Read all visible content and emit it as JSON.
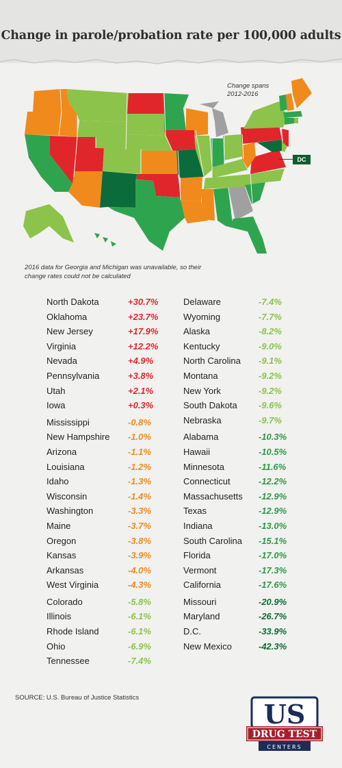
{
  "title": "Change in parole/probation rate per 100,000 adults",
  "change_spans_note": "Change spans\n2012-2016",
  "dc_label": "DC",
  "map_note_line1": "2016 data for Georgia and Michigan was unavailable, so their",
  "map_note_line2": "change rates could not be calculated",
  "source": "SOURCE: U.S. Bureau of Justice Statistics",
  "logo": {
    "top": "US",
    "middle": "DRUG TEST",
    "bottom": "CENTERS"
  },
  "colors": {
    "increase": "#e0262b",
    "small_decrease": "#f08a1c",
    "moderate_decrease": "#8cc34a",
    "large_decrease": "#2fa44f",
    "largest_decrease": "#0b6b3a",
    "unavailable": "#a0a0a0"
  },
  "left_column": [
    {
      "state": "North Dakota",
      "change": "+30.7%",
      "color": "#e0262b"
    },
    {
      "state": "Oklahoma",
      "change": "+23.7%",
      "color": "#e0262b"
    },
    {
      "state": "New Jersey",
      "change": "+17.9%",
      "color": "#e0262b"
    },
    {
      "state": "Virginia",
      "change": "+12.2%",
      "color": "#e0262b"
    },
    {
      "state": "Nevada",
      "change": "+4.9%",
      "color": "#e0262b"
    },
    {
      "state": "Pennsylvania",
      "change": "+3.8%",
      "color": "#e0262b"
    },
    {
      "state": "Utah",
      "change": "+2.1%",
      "color": "#e0262b"
    },
    {
      "state": "Iowa",
      "change": "+0.3%",
      "color": "#e0262b"
    },
    {
      "state": "Mississippi",
      "change": "-0.8%",
      "color": "#f08a1c"
    },
    {
      "state": "New Hampshire",
      "change": "-1.0%",
      "color": "#f08a1c"
    },
    {
      "state": "Arizona",
      "change": "-1.1%",
      "color": "#f08a1c"
    },
    {
      "state": "Louisiana",
      "change": "-1.2%",
      "color": "#f08a1c"
    },
    {
      "state": "Idaho",
      "change": "-1.3%",
      "color": "#f08a1c"
    },
    {
      "state": "Wisconsin",
      "change": "-1.4%",
      "color": "#f08a1c"
    },
    {
      "state": "Washington",
      "change": "-3.3%",
      "color": "#f08a1c"
    },
    {
      "state": "Maine",
      "change": "-3.7%",
      "color": "#f08a1c"
    },
    {
      "state": "Oregon",
      "change": "-3.8%",
      "color": "#f08a1c"
    },
    {
      "state": "Kansas",
      "change": "-3.9%",
      "color": "#f08a1c"
    },
    {
      "state": "Arkansas",
      "change": "-4.0%",
      "color": "#f08a1c"
    },
    {
      "state": "West Virginia",
      "change": "-4.3%",
      "color": "#f08a1c"
    },
    {
      "state": "Colorado",
      "change": "-5.8%",
      "color": "#8cc34a"
    },
    {
      "state": "Illinois",
      "change": "-6.1%",
      "color": "#8cc34a"
    },
    {
      "state": "Rhode Island",
      "change": "-6.1%",
      "color": "#8cc34a"
    },
    {
      "state": "Ohio",
      "change": "-6.9%",
      "color": "#8cc34a"
    },
    {
      "state": "Tennessee",
      "change": "-7.4%",
      "color": "#8cc34a"
    }
  ],
  "right_column": [
    {
      "state": "Delaware",
      "change": "-7.4%",
      "color": "#8cc34a"
    },
    {
      "state": "Wyoming",
      "change": "-7.7%",
      "color": "#8cc34a"
    },
    {
      "state": "Alaska",
      "change": "-8.2%",
      "color": "#8cc34a"
    },
    {
      "state": "Kentucky",
      "change": "-9.0%",
      "color": "#8cc34a"
    },
    {
      "state": "North Carolina",
      "change": "-9.1%",
      "color": "#8cc34a"
    },
    {
      "state": "Montana",
      "change": "-9.2%",
      "color": "#8cc34a"
    },
    {
      "state": "New York",
      "change": "-9.2%",
      "color": "#8cc34a"
    },
    {
      "state": "South Dakota",
      "change": "-9.6%",
      "color": "#8cc34a"
    },
    {
      "state": "Nebraska",
      "change": "-9.7%",
      "color": "#8cc34a"
    },
    {
      "state": "Alabama",
      "change": "-10.3%",
      "color": "#2e9a4a"
    },
    {
      "state": "Hawaii",
      "change": "-10.5%",
      "color": "#2e9a4a"
    },
    {
      "state": "Minnesota",
      "change": "-11.6%",
      "color": "#2e9a4a"
    },
    {
      "state": "Connecticut",
      "change": "-12.2%",
      "color": "#2e9a4a"
    },
    {
      "state": "Massachusetts",
      "change": "-12.9%",
      "color": "#2e9a4a"
    },
    {
      "state": "Texas",
      "change": "-12.9%",
      "color": "#2e9a4a"
    },
    {
      "state": "Indiana",
      "change": "-13.0%",
      "color": "#2e9a4a"
    },
    {
      "state": "South Carolina",
      "change": "-15.1%",
      "color": "#2e9a4a"
    },
    {
      "state": "Florida",
      "change": "-17.0%",
      "color": "#2e9a4a"
    },
    {
      "state": "Vermont",
      "change": "-17.3%",
      "color": "#2e9a4a"
    },
    {
      "state": "California",
      "change": "-17.6%",
      "color": "#2e9a4a"
    },
    {
      "state": "Missouri",
      "change": "-20.9%",
      "color": "#0b6b3a"
    },
    {
      "state": "Maryland",
      "change": "-26.7%",
      "color": "#0b6b3a"
    },
    {
      "state": "D.C.",
      "change": "-33.9%",
      "color": "#0b6b3a"
    },
    {
      "state": "New Mexico",
      "change": "-42.3%",
      "color": "#0b6b3a"
    }
  ]
}
